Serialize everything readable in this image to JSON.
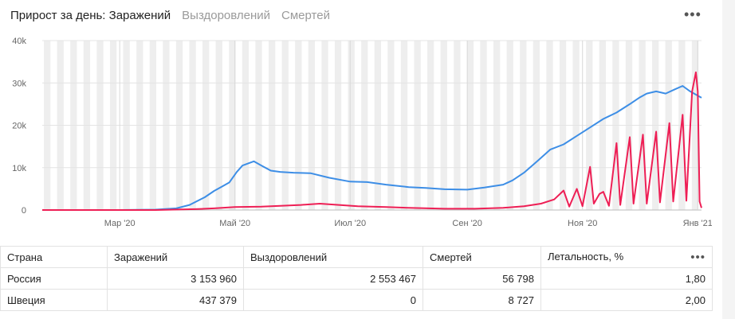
{
  "tabs": {
    "active": "Прирост за день: Заражений",
    "recovered": "Выздоровлений",
    "deaths": "Смертей"
  },
  "colors": {
    "infections": "#3d8ee6",
    "deaths": "#ee1f55",
    "stripe": "#eeeeee"
  },
  "chart_data": {
    "type": "line",
    "x_ticks": [
      "Мар '20",
      "Май '20",
      "Июл '20",
      "Сен '20",
      "Ноя '20",
      "Янв '21"
    ],
    "y_ticks": [
      "0",
      "10k",
      "20k",
      "30k",
      "40k"
    ],
    "ylim": [
      0,
      40000
    ],
    "xlim": [
      "2020-01-20",
      "2021-01-03"
    ],
    "series": [
      {
        "color": "#3d8ee6",
        "points": [
          [
            "2020-01-20",
            0
          ],
          [
            "2020-03-01",
            0
          ],
          [
            "2020-03-20",
            100
          ],
          [
            "2020-03-31",
            400
          ],
          [
            "2020-04-07",
            1200
          ],
          [
            "2020-04-15",
            3000
          ],
          [
            "2020-04-20",
            4500
          ],
          [
            "2020-04-24",
            5500
          ],
          [
            "2020-04-28",
            6500
          ],
          [
            "2020-05-02",
            9000
          ],
          [
            "2020-05-05",
            10500
          ],
          [
            "2020-05-08",
            11000
          ],
          [
            "2020-05-11",
            11500
          ],
          [
            "2020-05-15",
            10500
          ],
          [
            "2020-05-20",
            9300
          ],
          [
            "2020-05-25",
            9000
          ],
          [
            "2020-06-01",
            8800
          ],
          [
            "2020-06-10",
            8700
          ],
          [
            "2020-06-20",
            7600
          ],
          [
            "2020-07-01",
            6700
          ],
          [
            "2020-07-10",
            6600
          ],
          [
            "2020-07-20",
            6000
          ],
          [
            "2020-08-01",
            5400
          ],
          [
            "2020-08-10",
            5200
          ],
          [
            "2020-08-20",
            4900
          ],
          [
            "2020-09-01",
            4800
          ],
          [
            "2020-09-10",
            5300
          ],
          [
            "2020-09-20",
            6000
          ],
          [
            "2020-09-25",
            7000
          ],
          [
            "2020-10-01",
            8800
          ],
          [
            "2020-10-08",
            11500
          ],
          [
            "2020-10-15",
            14300
          ],
          [
            "2020-10-22",
            15500
          ],
          [
            "2020-10-29",
            17500
          ],
          [
            "2020-11-05",
            19500
          ],
          [
            "2020-11-12",
            21500
          ],
          [
            "2020-11-19",
            23000
          ],
          [
            "2020-11-26",
            25000
          ],
          [
            "2020-12-01",
            26500
          ],
          [
            "2020-12-05",
            27500
          ],
          [
            "2020-12-10",
            28000
          ],
          [
            "2020-12-15",
            27500
          ],
          [
            "2020-12-20",
            28500
          ],
          [
            "2020-12-24",
            29300
          ],
          [
            "2020-12-28",
            28000
          ],
          [
            "2021-01-01",
            27000
          ],
          [
            "2021-01-03",
            26500
          ]
        ]
      },
      {
        "color": "#ee1f55",
        "points": [
          [
            "2020-01-20",
            0
          ],
          [
            "2020-03-20",
            0
          ],
          [
            "2020-04-10",
            200
          ],
          [
            "2020-04-20",
            400
          ],
          [
            "2020-05-01",
            700
          ],
          [
            "2020-05-15",
            800
          ],
          [
            "2020-05-25",
            1000
          ],
          [
            "2020-06-05",
            1200
          ],
          [
            "2020-06-15",
            1500
          ],
          [
            "2020-06-25",
            1200
          ],
          [
            "2020-07-05",
            900
          ],
          [
            "2020-07-20",
            700
          ],
          [
            "2020-08-01",
            500
          ],
          [
            "2020-08-20",
            300
          ],
          [
            "2020-09-05",
            300
          ],
          [
            "2020-09-20",
            500
          ],
          [
            "2020-10-01",
            900
          ],
          [
            "2020-10-10",
            1500
          ],
          [
            "2020-10-17",
            2500
          ],
          [
            "2020-10-22",
            4600
          ],
          [
            "2020-10-25",
            800
          ],
          [
            "2020-10-29",
            5000
          ],
          [
            "2020-11-01",
            900
          ],
          [
            "2020-11-05",
            10200
          ],
          [
            "2020-11-07",
            1500
          ],
          [
            "2020-11-10",
            3800
          ],
          [
            "2020-11-12",
            4300
          ],
          [
            "2020-11-15",
            1000
          ],
          [
            "2020-11-19",
            15800
          ],
          [
            "2020-11-21",
            1200
          ],
          [
            "2020-11-26",
            17200
          ],
          [
            "2020-11-28",
            1500
          ],
          [
            "2020-12-03",
            17800
          ],
          [
            "2020-12-05",
            1500
          ],
          [
            "2020-12-10",
            18500
          ],
          [
            "2020-12-12",
            1800
          ],
          [
            "2020-12-17",
            20500
          ],
          [
            "2020-12-19",
            2000
          ],
          [
            "2020-12-24",
            22500
          ],
          [
            "2020-12-26",
            2200
          ],
          [
            "2020-12-29",
            28000
          ],
          [
            "2020-12-31",
            32500
          ],
          [
            "2021-01-01",
            28000
          ],
          [
            "2021-01-02",
            2000
          ],
          [
            "2021-01-03",
            500
          ]
        ]
      }
    ]
  },
  "table": {
    "headers": [
      "Страна",
      "Заражений",
      "Выздоровлений",
      "Смертей",
      "Летальность, %"
    ],
    "rows": [
      [
        "Россия",
        "3 153 960",
        "2 553 467",
        "56 798",
        "1,80"
      ],
      [
        "Швеция",
        "437 379",
        "0",
        "8 727",
        "2,00"
      ]
    ],
    "menu_icon": "more-icon"
  }
}
